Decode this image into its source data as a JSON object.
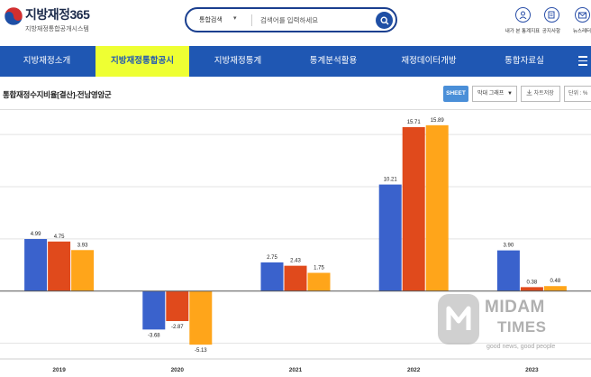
{
  "site": {
    "title": "지방재정365",
    "subtitle": "지방재정통합공개시스템"
  },
  "search": {
    "category": "통합검색",
    "placeholder": "검색어를 입력하세요"
  },
  "utilities": [
    {
      "label": "내가 본 통계지표",
      "icon": "user-icon"
    },
    {
      "label": "공지사항",
      "icon": "notice-icon"
    },
    {
      "label": "뉴스레터",
      "icon": "newsletter-icon"
    }
  ],
  "nav": {
    "items": [
      {
        "label": "지방재정소개",
        "active": false
      },
      {
        "label": "지방재정통합공시",
        "active": true
      },
      {
        "label": "지방재정통계",
        "active": false
      },
      {
        "label": "통계분석활용",
        "active": false
      },
      {
        "label": "재정데이터개방",
        "active": false
      },
      {
        "label": "통합자료실",
        "active": false
      }
    ]
  },
  "chart_header": {
    "title": "통합재정수지비율[결산]-전남영암군",
    "sheet_button": "SHEET",
    "chart_type": "막대 그래프",
    "save_button": "차트저장",
    "unit_label": "단위 : %"
  },
  "colors": {
    "nav_bg": "#1f57b3",
    "nav_active_bg": "#eeff33",
    "series_blue": "#3a62cc",
    "series_red": "#e04a1c",
    "series_orange": "#ffa51a"
  },
  "watermark": {
    "line1": "MIDAM",
    "line2": "TIMES",
    "line3": "good news, good people"
  },
  "chart_data": {
    "type": "bar",
    "categories": [
      "2019",
      "2020",
      "2021",
      "2022",
      "2023"
    ],
    "series": [
      {
        "values": [
          4.99,
          -3.68,
          2.75,
          10.21,
          3.9
        ],
        "labels": [
          "4.99",
          "-3.68",
          "2.75",
          "10.21",
          "3.90"
        ],
        "color": "#3a62cc"
      },
      {
        "values": [
          4.75,
          -2.87,
          2.43,
          15.71,
          0.38
        ],
        "labels": [
          "4.75",
          "-2.87",
          "2.43",
          "15.71",
          "0.38"
        ],
        "color": "#e04a1c"
      },
      {
        "values": [
          3.93,
          -5.13,
          1.75,
          15.89,
          0.48
        ],
        "labels": [
          "3.93",
          "-5.13",
          "1.75",
          "15.89",
          "0.48"
        ],
        "color": "#ffa51a"
      }
    ],
    "ylim": [
      -6.5,
      17
    ],
    "grid": true
  }
}
